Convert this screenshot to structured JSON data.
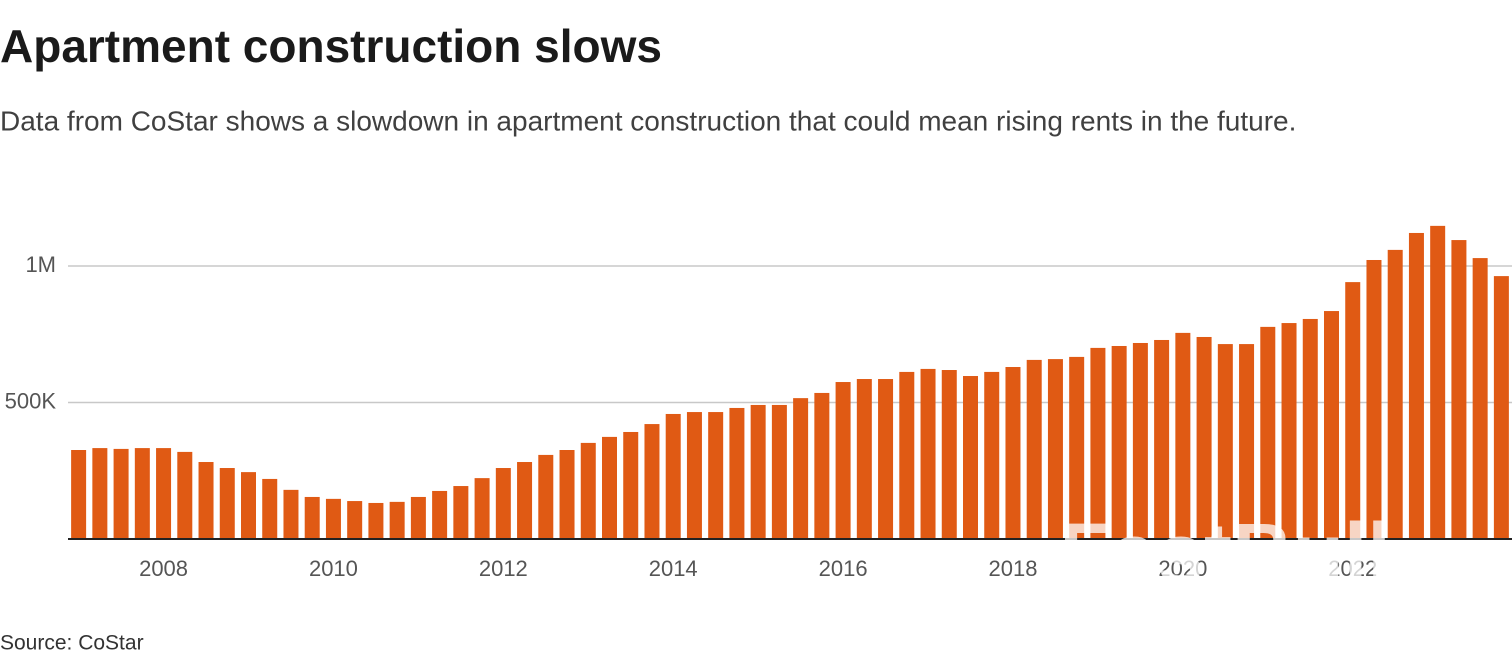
{
  "chart_data": {
    "type": "bar",
    "title": "Apartment construction slows",
    "subtitle": "Data from CoStar shows a slowdown in apartment construction that could mean rising rents in the future.",
    "source": "Source: CoStar",
    "watermark": "FastBull",
    "color": "#e05a14",
    "grid": true,
    "categories": [
      null,
      null,
      null,
      null,
      "2008",
      null,
      null,
      null,
      null,
      null,
      null,
      null,
      "2010",
      null,
      null,
      null,
      null,
      null,
      null,
      null,
      "2012",
      null,
      null,
      null,
      null,
      null,
      null,
      null,
      "2014",
      null,
      null,
      null,
      null,
      null,
      null,
      null,
      "2016",
      null,
      null,
      null,
      null,
      null,
      null,
      null,
      "2018",
      null,
      null,
      null,
      null,
      null,
      null,
      null,
      "2020",
      null,
      null,
      null,
      null,
      null,
      null,
      null,
      "2022",
      null,
      null,
      null,
      null,
      null,
      null,
      null
    ],
    "values": [
      326000,
      333000,
      330000,
      333000,
      333000,
      319000,
      282000,
      260000,
      245000,
      220000,
      180000,
      154000,
      147000,
      139000,
      132000,
      136000,
      154000,
      176000,
      194000,
      223000,
      260000,
      282000,
      308000,
      326000,
      352000,
      374000,
      392000,
      421000,
      458000,
      465000,
      465000,
      480000,
      491000,
      491000,
      516000,
      535000,
      575000,
      586000,
      586000,
      612000,
      623000,
      619000,
      597000,
      612000,
      630000,
      656000,
      659000,
      667000,
      700000,
      707000,
      718000,
      729000,
      755000,
      740000,
      714000,
      714000,
      777000,
      791000,
      806000,
      835000,
      941000,
      1022000,
      1059000,
      1121000,
      1147000,
      1095000,
      1029000,
      963000
    ],
    "ylim": [
      0,
      1250000
    ],
    "yticks": [
      {
        "value": 500000,
        "label": "500K"
      },
      {
        "value": 1000000,
        "label": "1M"
      }
    ]
  }
}
